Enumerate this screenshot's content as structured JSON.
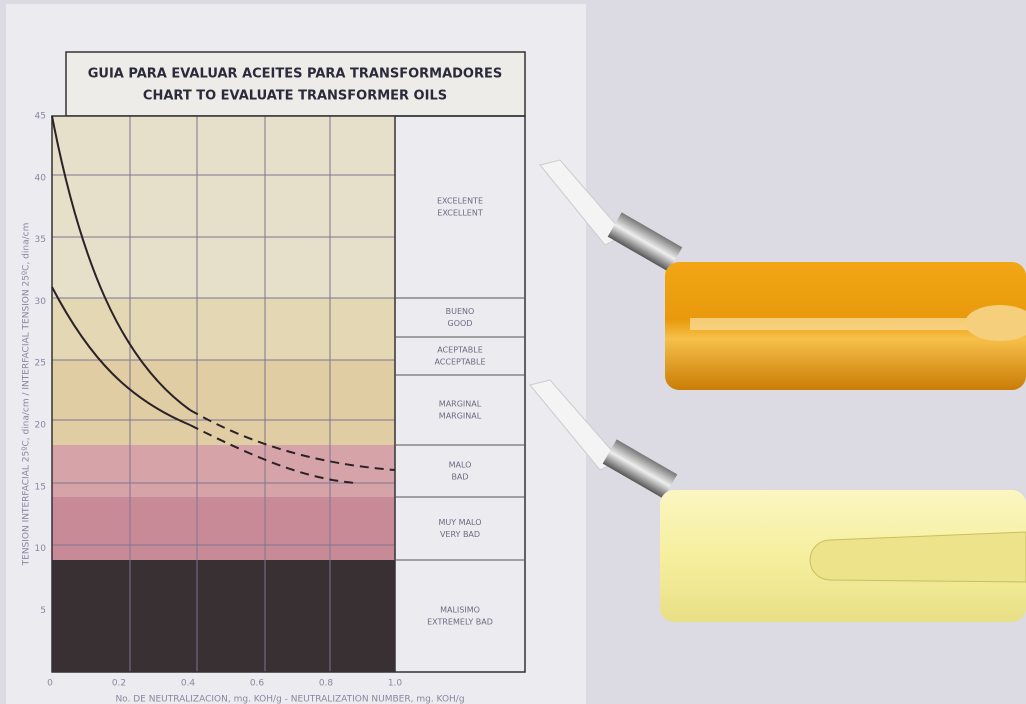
{
  "title": {
    "es": "GUIA PARA EVALUAR ACEITES PARA TRANSFORMADORES",
    "en": "CHART TO EVALUATE TRANSFORMER OILS"
  },
  "y_axis": {
    "label": "TENSION INTERFACIAL 25ºC, dina/cm / INTERFACIAL TENSION 25ºC, dina/cm",
    "ticks": [
      "45",
      "40",
      "35",
      "30",
      "25",
      "20",
      "15",
      "10",
      "5"
    ]
  },
  "x_axis": {
    "label": "No. DE NEUTRALIZACION, mg. KOH/g - NEUTRALIZATION NUMBER, mg. KOH/g",
    "ticks": [
      "0",
      "0.2",
      "0.4",
      "0.6",
      "0.8",
      "1.0"
    ]
  },
  "ratings": [
    {
      "es": "EXCELENTE",
      "en": "EXCELLENT"
    },
    {
      "es": "BUENO",
      "en": "GOOD"
    },
    {
      "es": "ACEPTABLE",
      "en": "ACCEPTABLE"
    },
    {
      "es": "MARGINAL",
      "en": "MARGINAL"
    },
    {
      "es": "MALO",
      "en": "BAD"
    },
    {
      "es": "MUY MALO",
      "en": "VERY BAD"
    },
    {
      "es": "MALISIMO",
      "en": "EXTREMELY BAD"
    }
  ]
}
